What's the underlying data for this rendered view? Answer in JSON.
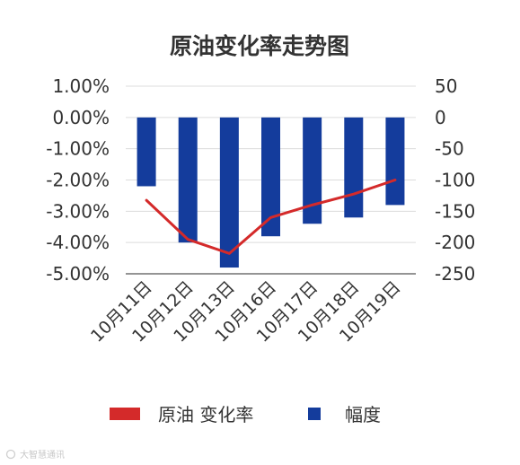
{
  "chart_data": {
    "type": "bar",
    "title": "原油变化率走势图",
    "categories": [
      "10月11日",
      "10月12日",
      "10月13日",
      "10月16日",
      "10月17日",
      "10月18日",
      "10月19日"
    ],
    "series": [
      {
        "name": "原油 变化率",
        "type": "line",
        "axis": "left",
        "color": "#d42a2a",
        "values": [
          -2.65,
          -3.9,
          -4.35,
          -3.2,
          -2.8,
          -2.45,
          -2.0
        ]
      },
      {
        "name": "幅度",
        "type": "bar",
        "axis": "right",
        "color": "#143c9c",
        "values": [
          -110,
          -200,
          -240,
          -190,
          -170,
          -160,
          -140
        ]
      }
    ],
    "y_left": {
      "min": -5,
      "max": 1,
      "ticks": [
        1,
        0,
        -1,
        -2,
        -3,
        -4,
        -5
      ],
      "tick_labels": [
        "1.00%",
        "0.00%",
        "-1.00%",
        "-2.00%",
        "-3.00%",
        "-4.00%",
        "-5.00%"
      ]
    },
    "y_right": {
      "min": -250,
      "max": 50,
      "ticks": [
        50,
        0,
        -50,
        -100,
        -150,
        -200,
        -250
      ],
      "tick_labels": [
        "50",
        "0",
        "-50",
        "-100",
        "-150",
        "-200",
        "-250"
      ]
    },
    "grid": true,
    "legend_position": "bottom"
  },
  "watermark": "大智慧通讯"
}
